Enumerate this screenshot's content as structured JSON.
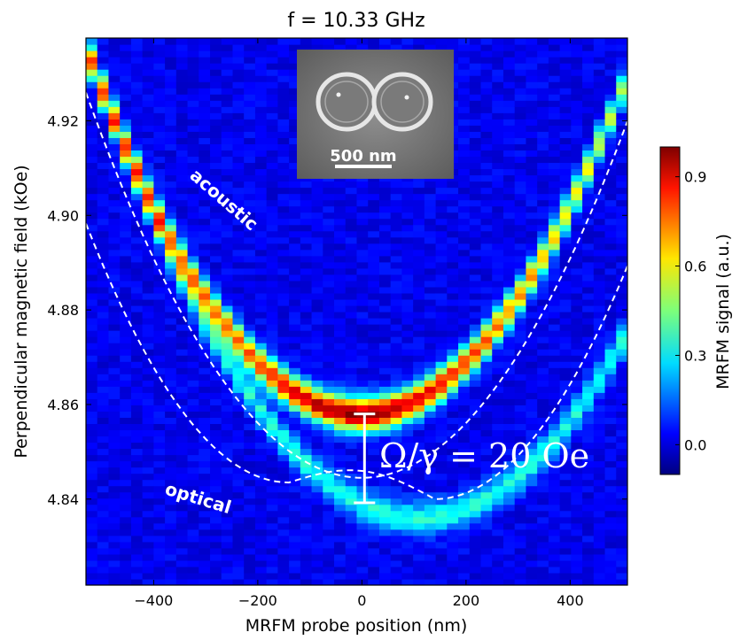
{
  "chart_data": {
    "type": "heatmap",
    "title": "f = 10.33 GHz",
    "xlabel": "MRFM probe position (nm)",
    "ylabel": "Perpendicular magnetic field (kOe)",
    "xlim": [
      -530,
      510
    ],
    "ylim": [
      4.8218,
      4.9375
    ],
    "x_ticks": [
      {
        "value": -400,
        "label": "−400"
      },
      {
        "value": -200,
        "label": "−200"
      },
      {
        "value": 0,
        "label": "0"
      },
      {
        "value": 200,
        "label": "200"
      },
      {
        "value": 400,
        "label": "400"
      }
    ],
    "y_ticks": [
      {
        "value": 4.84,
        "label": "4.84"
      },
      {
        "value": 4.86,
        "label": "4.86"
      },
      {
        "value": 4.88,
        "label": "4.88"
      },
      {
        "value": 4.9,
        "label": "4.90"
      },
      {
        "value": 4.92,
        "label": "4.92"
      }
    ],
    "series": [
      {
        "mode": "acoustic",
        "vertex_x": 0,
        "vertex_field": 4.858,
        "curvature_per_nm2": 2.75e-07,
        "peak_signal": 1.0,
        "linewidth_kOe": 0.0035
      },
      {
        "mode": "optical",
        "vertex_x": 110,
        "vertex_field": 4.836,
        "curvature_per_nm2": 2.45e-07,
        "peak_signal": 0.32,
        "linewidth_kOe": 0.0035
      }
    ],
    "fit_curves": [
      {
        "name": "acoustic",
        "vertex_x": 0,
        "vertex_field": 4.8445,
        "curvature_per_nm2": 2.9e-07
      },
      {
        "name": "optical",
        "vertex_x": 0,
        "vertex_field": 4.8445,
        "curvature_per_nm2": 2.9e-07
      }
    ],
    "fit_min_markers": [
      {
        "x": -140,
        "field": 4.8435
      },
      {
        "x": 140,
        "field": 4.84
      }
    ],
    "gap_bar": {
      "x": 5,
      "field_low": 4.8392,
      "field_high": 4.858
    },
    "colorbar": {
      "label": "MRFM signal (a.u.)",
      "range": [
        -0.1,
        1.0
      ],
      "ticks": [
        {
          "value": 0.0,
          "label": "0.0"
        },
        {
          "value": 0.3,
          "label": "0.3"
        },
        {
          "value": 0.6,
          "label": "0.6"
        },
        {
          "value": 0.9,
          "label": "0.9"
        }
      ],
      "colormap": "jet"
    },
    "annotations": {
      "acoustic": "acoustic",
      "optical": "optical",
      "gap_formula": "Ω/γ = 20 Oe"
    },
    "inset": {
      "scale_bar_label": "500 nm"
    }
  }
}
